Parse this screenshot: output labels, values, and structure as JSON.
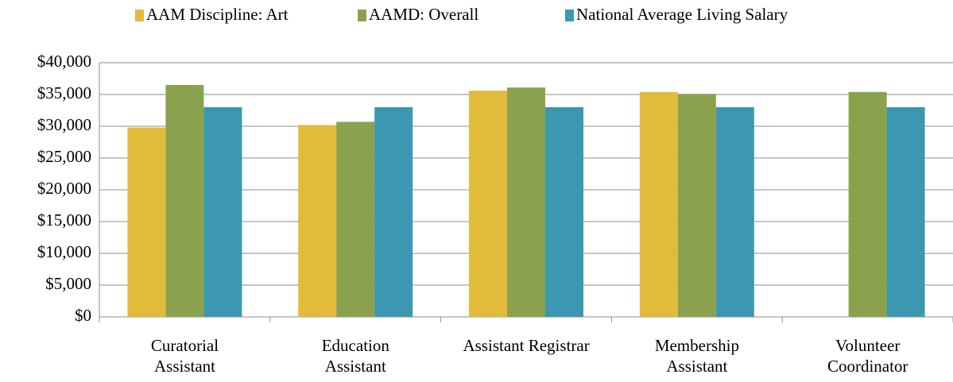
{
  "chart_data": {
    "type": "bar",
    "categories": [
      "Curatorial\nAssistant",
      "Education\nAssistant",
      "Assistant Registrar",
      "Membership\nAssistant",
      "Volunteer\nCoordinator"
    ],
    "series": [
      {
        "name": "AAM Discipline: Art",
        "color": "#e2bb3b",
        "values": [
          29800,
          30200,
          35600,
          35400,
          null
        ]
      },
      {
        "name": "AAMD: Overall",
        "color": "#8aa24e",
        "values": [
          36500,
          30700,
          36100,
          35100,
          35400
        ]
      },
      {
        "name": "National Average Living Salary",
        "color": "#3b98b0",
        "values": [
          33000,
          33000,
          33000,
          33000,
          33000
        ]
      }
    ],
    "ylim": [
      0,
      40000
    ],
    "yticks": [
      {
        "value": 0,
        "label": "$0"
      },
      {
        "value": 5000,
        "label": "$5,000"
      },
      {
        "value": 10000,
        "label": "$10,000"
      },
      {
        "value": 15000,
        "label": "$15,000"
      },
      {
        "value": 20000,
        "label": "$20,000"
      },
      {
        "value": 25000,
        "label": "$25,000"
      },
      {
        "value": 30000,
        "label": "$30,000"
      },
      {
        "value": 35000,
        "label": "$35,000"
      },
      {
        "value": 40000,
        "label": "$40,000"
      }
    ],
    "grid": true,
    "legend": "top"
  }
}
